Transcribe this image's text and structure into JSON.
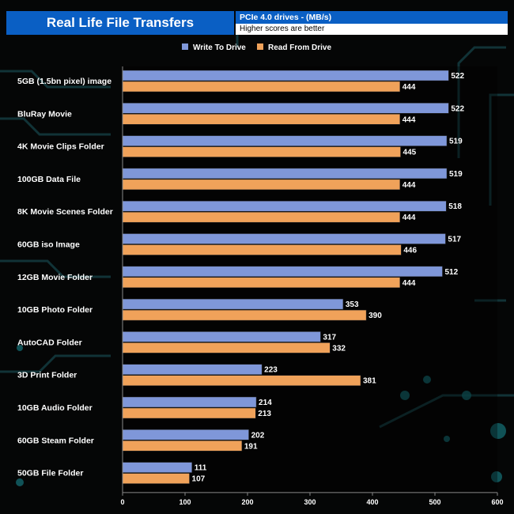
{
  "header": {
    "title": "Real Life File Transfers",
    "subtitle": "PCIe 4.0 drives - (MB/s)",
    "note": "Higher scores are better"
  },
  "colors": {
    "write": "#7f97d9",
    "read": "#f0a25a",
    "accent": "#0a5fc4"
  },
  "chart_data": {
    "type": "bar",
    "orientation": "horizontal",
    "title": "Real Life File Transfers",
    "xlabel": "",
    "ylabel": "",
    "xlim": [
      0,
      600
    ],
    "xticks": [
      0,
      100,
      200,
      300,
      400,
      500,
      600
    ],
    "legend_position": "top",
    "categories": [
      "5GB (1.5bn pixel) image",
      "BluRay Movie",
      "4K Movie Clips Folder",
      "100GB Data File",
      "8K Movie Scenes Folder",
      "60GB iso Image",
      "12GB Movie Folder",
      "10GB Photo Folder",
      "AutoCAD Folder",
      "3D Print Folder",
      "10GB Audio Folder",
      "60GB Steam Folder",
      "50GB File Folder"
    ],
    "series": [
      {
        "name": "Write To  Drive",
        "values": [
          522,
          522,
          519,
          519,
          518,
          517,
          512,
          353,
          317,
          223,
          214,
          202,
          111
        ]
      },
      {
        "name": "Read From  Drive",
        "values": [
          444,
          444,
          445,
          444,
          444,
          446,
          444,
          390,
          332,
          381,
          213,
          191,
          107
        ]
      }
    ]
  }
}
